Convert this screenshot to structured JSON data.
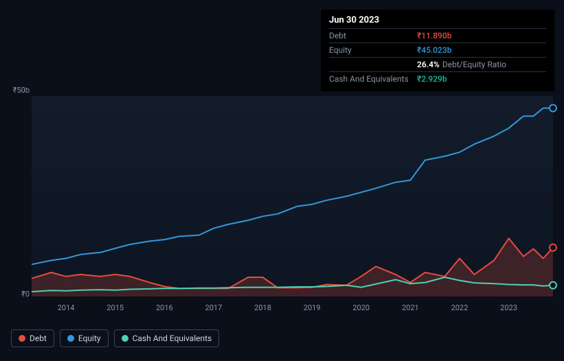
{
  "tooltip": {
    "date": "Jun 30 2023",
    "debt_label": "Debt",
    "debt_value": "₹11.890b",
    "equity_label": "Equity",
    "equity_value": "₹45.023b",
    "ratio_value": "26.4%",
    "ratio_label": "Debt/Equity Ratio",
    "cash_label": "Cash And Equivalents",
    "cash_value": "₹2.929b"
  },
  "chart": {
    "y_top_label": "₹50b",
    "y_bottom_label": "₹0",
    "ylim": [
      0,
      50
    ],
    "x_years": [
      "2014",
      "2015",
      "2016",
      "2017",
      "2018",
      "2019",
      "2020",
      "2021",
      "2022",
      "2023"
    ],
    "x_range_years": [
      2013.3,
      2023.9
    ],
    "colors": {
      "debt": "#e74c3c",
      "debt_fill": "rgba(231,76,60,0.22)",
      "equity": "#3498db",
      "cash": "#4fd1b3",
      "grid": "#1f2a3a",
      "bg_top": "#131c2b",
      "bg_bot": "#0d1522"
    },
    "line_width": 2,
    "marker_radius": 5,
    "series": {
      "equity": [
        [
          2013.3,
          8
        ],
        [
          2013.7,
          9
        ],
        [
          2014.0,
          9.5
        ],
        [
          2014.3,
          10.5
        ],
        [
          2014.7,
          11
        ],
        [
          2015.0,
          12
        ],
        [
          2015.3,
          13
        ],
        [
          2015.7,
          13.8
        ],
        [
          2016.0,
          14.2
        ],
        [
          2016.3,
          15
        ],
        [
          2016.7,
          15.3
        ],
        [
          2017.0,
          17
        ],
        [
          2017.3,
          18
        ],
        [
          2017.7,
          19
        ],
        [
          2018.0,
          20
        ],
        [
          2018.3,
          20.6
        ],
        [
          2018.7,
          22.5
        ],
        [
          2019.0,
          23
        ],
        [
          2019.3,
          24
        ],
        [
          2019.7,
          25
        ],
        [
          2020.0,
          26
        ],
        [
          2020.3,
          27
        ],
        [
          2020.7,
          28.5
        ],
        [
          2021.0,
          29
        ],
        [
          2021.3,
          34
        ],
        [
          2021.7,
          35
        ],
        [
          2022.0,
          36
        ],
        [
          2022.3,
          38
        ],
        [
          2022.7,
          40
        ],
        [
          2023.0,
          42
        ],
        [
          2023.3,
          45
        ],
        [
          2023.5,
          45
        ],
        [
          2023.7,
          47
        ],
        [
          2023.9,
          47
        ]
      ],
      "debt": [
        [
          2013.3,
          4.5
        ],
        [
          2013.7,
          6
        ],
        [
          2014.0,
          5
        ],
        [
          2014.3,
          5.5
        ],
        [
          2014.7,
          5
        ],
        [
          2015.0,
          5.5
        ],
        [
          2015.3,
          5
        ],
        [
          2015.7,
          3.5
        ],
        [
          2016.0,
          2.5
        ],
        [
          2016.3,
          2
        ],
        [
          2016.7,
          2
        ],
        [
          2017.0,
          2
        ],
        [
          2017.3,
          2
        ],
        [
          2017.7,
          4.8
        ],
        [
          2018.0,
          4.8
        ],
        [
          2018.3,
          2.2
        ],
        [
          2018.7,
          2.2
        ],
        [
          2019.0,
          2.3
        ],
        [
          2019.3,
          3
        ],
        [
          2019.7,
          2.8
        ],
        [
          2020.0,
          5
        ],
        [
          2020.3,
          7.5
        ],
        [
          2020.7,
          5.5
        ],
        [
          2021.0,
          3.5
        ],
        [
          2021.3,
          6
        ],
        [
          2021.7,
          5
        ],
        [
          2022.0,
          9.5
        ],
        [
          2022.3,
          5.5
        ],
        [
          2022.7,
          9
        ],
        [
          2023.0,
          14.5
        ],
        [
          2023.3,
          10
        ],
        [
          2023.5,
          11.9
        ],
        [
          2023.7,
          9.5
        ],
        [
          2023.9,
          12.2
        ]
      ],
      "cash": [
        [
          2013.3,
          1.2
        ],
        [
          2013.7,
          1.5
        ],
        [
          2014.0,
          1.4
        ],
        [
          2014.3,
          1.6
        ],
        [
          2014.7,
          1.7
        ],
        [
          2015.0,
          1.6
        ],
        [
          2015.3,
          1.8
        ],
        [
          2015.7,
          1.9
        ],
        [
          2016.0,
          2.0
        ],
        [
          2016.3,
          2.0
        ],
        [
          2016.7,
          2.1
        ],
        [
          2017.0,
          2.1
        ],
        [
          2017.3,
          2.2
        ],
        [
          2017.7,
          2.3
        ],
        [
          2018.0,
          2.3
        ],
        [
          2018.3,
          2.3
        ],
        [
          2018.7,
          2.4
        ],
        [
          2019.0,
          2.4
        ],
        [
          2019.3,
          2.5
        ],
        [
          2019.7,
          2.8
        ],
        [
          2020.0,
          2.3
        ],
        [
          2020.3,
          3.1
        ],
        [
          2020.7,
          4.2
        ],
        [
          2021.0,
          3.2
        ],
        [
          2021.3,
          3.5
        ],
        [
          2021.7,
          4.8
        ],
        [
          2022.0,
          4.0
        ],
        [
          2022.3,
          3.4
        ],
        [
          2022.7,
          3.2
        ],
        [
          2023.0,
          3.0
        ],
        [
          2023.3,
          2.9
        ],
        [
          2023.5,
          2.9
        ],
        [
          2023.7,
          2.6
        ],
        [
          2023.9,
          2.8
        ]
      ]
    }
  },
  "legend": {
    "debt": "Debt",
    "equity": "Equity",
    "cash": "Cash And Equivalents"
  }
}
